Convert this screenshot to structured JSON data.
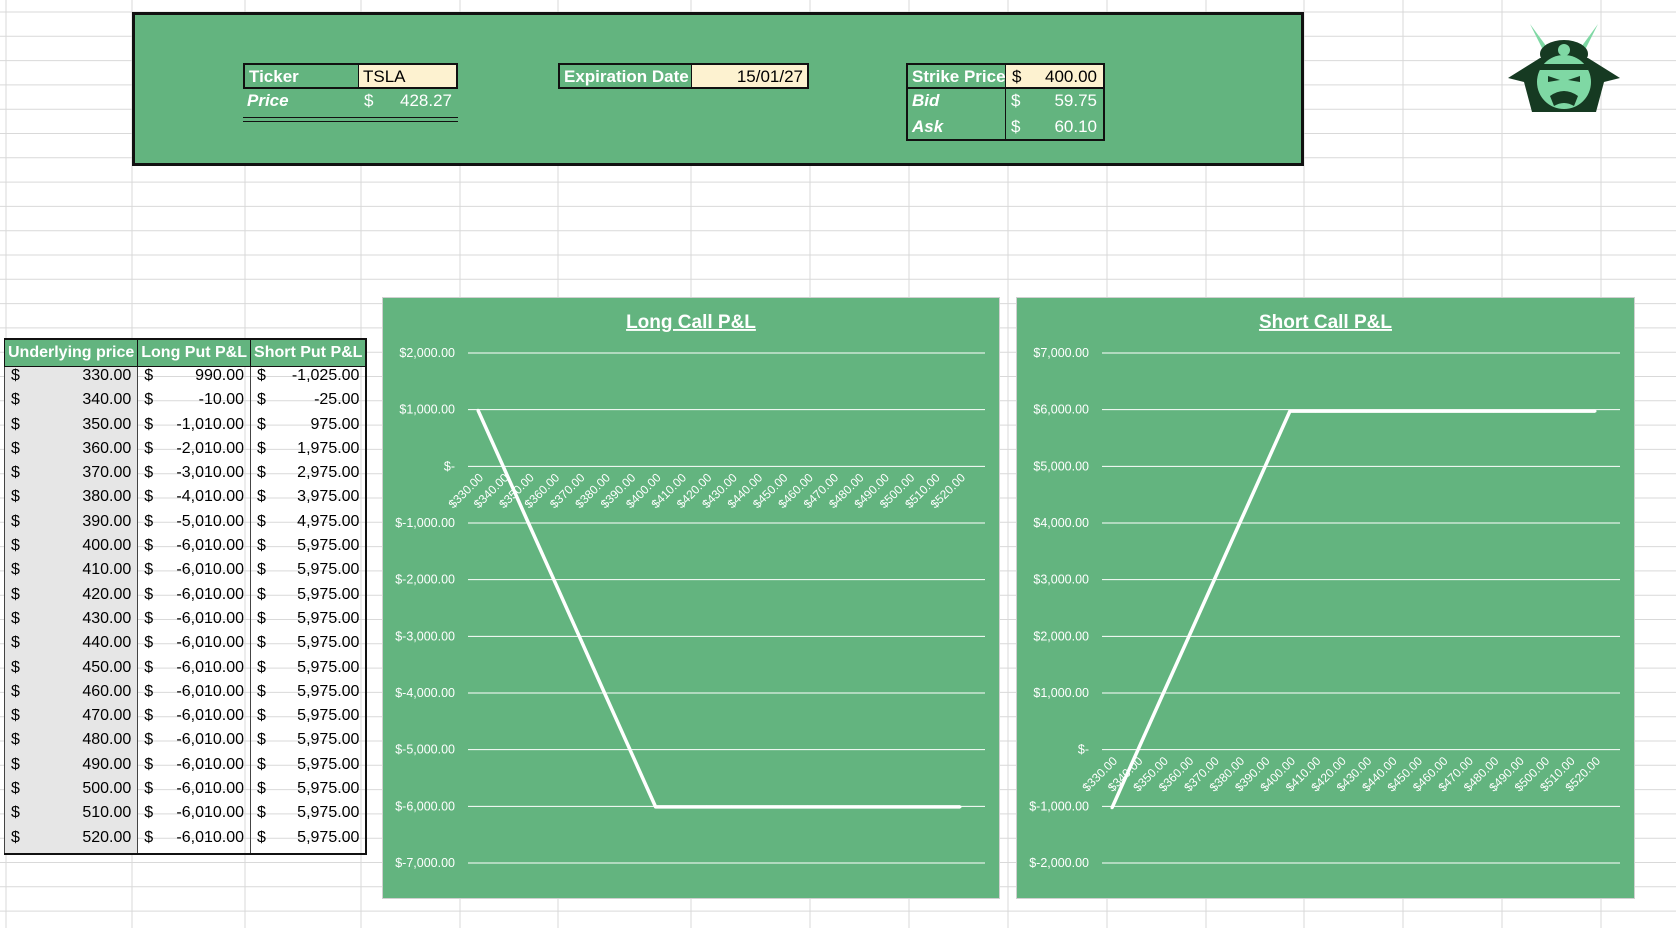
{
  "header": {
    "ticker_label": "Ticker",
    "ticker_value": "TSLA",
    "price_label": "Price",
    "price_currency": "$",
    "price_value": "428.27",
    "expiration_label": "Expiration Date",
    "expiration_value": "15/01/27",
    "strike_label": "Strike Price",
    "strike_currency": "$",
    "strike_value": "400.00",
    "bid_label": "Bid",
    "bid_currency": "$",
    "bid_value": "59.75",
    "ask_label": "Ask",
    "ask_currency": "$",
    "ask_value": "60.10"
  },
  "logo": {
    "icon": "samurai-helmet-icon"
  },
  "table": {
    "headers": [
      "Underlying price",
      "Long Put P&L",
      "Short Put P&L"
    ],
    "currency": "$",
    "rows": [
      [
        "330.00",
        "990.00",
        "-1,025.00"
      ],
      [
        "340.00",
        "-10.00",
        "-25.00"
      ],
      [
        "350.00",
        "-1,010.00",
        "975.00"
      ],
      [
        "360.00",
        "-2,010.00",
        "1,975.00"
      ],
      [
        "370.00",
        "-3,010.00",
        "2,975.00"
      ],
      [
        "380.00",
        "-4,010.00",
        "3,975.00"
      ],
      [
        "390.00",
        "-5,010.00",
        "4,975.00"
      ],
      [
        "400.00",
        "-6,010.00",
        "5,975.00"
      ],
      [
        "410.00",
        "-6,010.00",
        "5,975.00"
      ],
      [
        "420.00",
        "-6,010.00",
        "5,975.00"
      ],
      [
        "430.00",
        "-6,010.00",
        "5,975.00"
      ],
      [
        "440.00",
        "-6,010.00",
        "5,975.00"
      ],
      [
        "450.00",
        "-6,010.00",
        "5,975.00"
      ],
      [
        "460.00",
        "-6,010.00",
        "5,975.00"
      ],
      [
        "470.00",
        "-6,010.00",
        "5,975.00"
      ],
      [
        "480.00",
        "-6,010.00",
        "5,975.00"
      ],
      [
        "490.00",
        "-6,010.00",
        "5,975.00"
      ],
      [
        "500.00",
        "-6,010.00",
        "5,975.00"
      ],
      [
        "510.00",
        "-6,010.00",
        "5,975.00"
      ],
      [
        "520.00",
        "-6,010.00",
        "5,975.00"
      ]
    ]
  },
  "colors": {
    "accent": "#63b47f",
    "input_fill": "#fdf2d0",
    "grid": "#d9d9d9",
    "line": "#ffffff"
  },
  "chart_data": [
    {
      "type": "line",
      "title": "Long Call P&L",
      "categories": [
        "$330.00",
        "$340.00",
        "$350.00",
        "$360.00",
        "$370.00",
        "$380.00",
        "$390.00",
        "$400.00",
        "$410.00",
        "$420.00",
        "$430.00",
        "$440.00",
        "$450.00",
        "$460.00",
        "$470.00",
        "$480.00",
        "$490.00",
        "$500.00",
        "$510.00",
        "$520.00"
      ],
      "values": [
        990,
        -10,
        -1010,
        -2010,
        -3010,
        -4010,
        -5010,
        -6010,
        -6010,
        -6010,
        -6010,
        -6010,
        -6010,
        -6010,
        -6010,
        -6010,
        -6010,
        -6010,
        -6010,
        -6010
      ],
      "ylim": [
        -7000,
        2000
      ],
      "yticks": [
        2000,
        1000,
        0,
        -1000,
        -2000,
        -3000,
        -4000,
        -5000,
        -6000,
        -7000
      ],
      "ytick_labels": [
        "$2,000.00",
        "$1,000.00",
        "$-",
        "$-1,000.00",
        "$-2,000.00",
        "$-3,000.00",
        "$-4,000.00",
        "$-5,000.00",
        "$-6,000.00",
        "$-7,000.00"
      ],
      "grid": true,
      "legend": "none"
    },
    {
      "type": "line",
      "title": "Short Call P&L",
      "categories": [
        "$330.00",
        "$340.00",
        "$350.00",
        "$360.00",
        "$370.00",
        "$380.00",
        "$390.00",
        "$400.00",
        "$410.00",
        "$420.00",
        "$430.00",
        "$440.00",
        "$450.00",
        "$460.00",
        "$470.00",
        "$480.00",
        "$490.00",
        "$500.00",
        "$510.00",
        "$520.00"
      ],
      "values": [
        -1025,
        -25,
        975,
        1975,
        2975,
        3975,
        4975,
        5975,
        5975,
        5975,
        5975,
        5975,
        5975,
        5975,
        5975,
        5975,
        5975,
        5975,
        5975,
        5975
      ],
      "ylim": [
        -2000,
        7000
      ],
      "yticks": [
        7000,
        6000,
        5000,
        4000,
        3000,
        2000,
        1000,
        0,
        -1000,
        -2000
      ],
      "ytick_labels": [
        "$7,000.00",
        "$6,000.00",
        "$5,000.00",
        "$4,000.00",
        "$3,000.00",
        "$2,000.00",
        "$1,000.00",
        "$-",
        "$-1,000.00",
        "$-2,000.00"
      ],
      "grid": true,
      "legend": "none"
    }
  ]
}
